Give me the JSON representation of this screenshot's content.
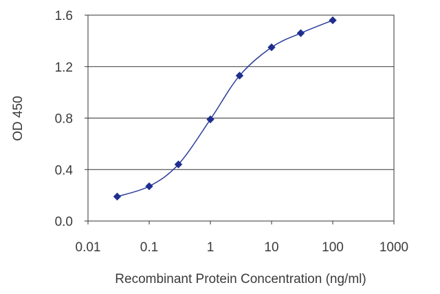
{
  "chart_data": {
    "type": "line",
    "title": "",
    "xlabel": "Recombinant Protein Concentration (ng/ml)",
    "ylabel": "OD 450",
    "x_scale": "log",
    "xlim": [
      0.01,
      1000
    ],
    "ylim": [
      0.0,
      1.6
    ],
    "x_ticks": [
      "0.01",
      "0.1",
      "1",
      "10",
      "100",
      "1000"
    ],
    "y_ticks": [
      "0.0",
      "0.4",
      "0.8",
      "1.2",
      "1.6"
    ],
    "grid": "horizontal",
    "legend": "none",
    "series": [
      {
        "x": [
          0.03,
          0.1,
          0.3,
          1,
          3,
          10,
          30,
          100
        ],
        "y": [
          0.19,
          0.27,
          0.44,
          0.79,
          1.13,
          1.35,
          1.46,
          1.56
        ],
        "color": "#1f2f8f",
        "marker": "diamond"
      }
    ]
  }
}
